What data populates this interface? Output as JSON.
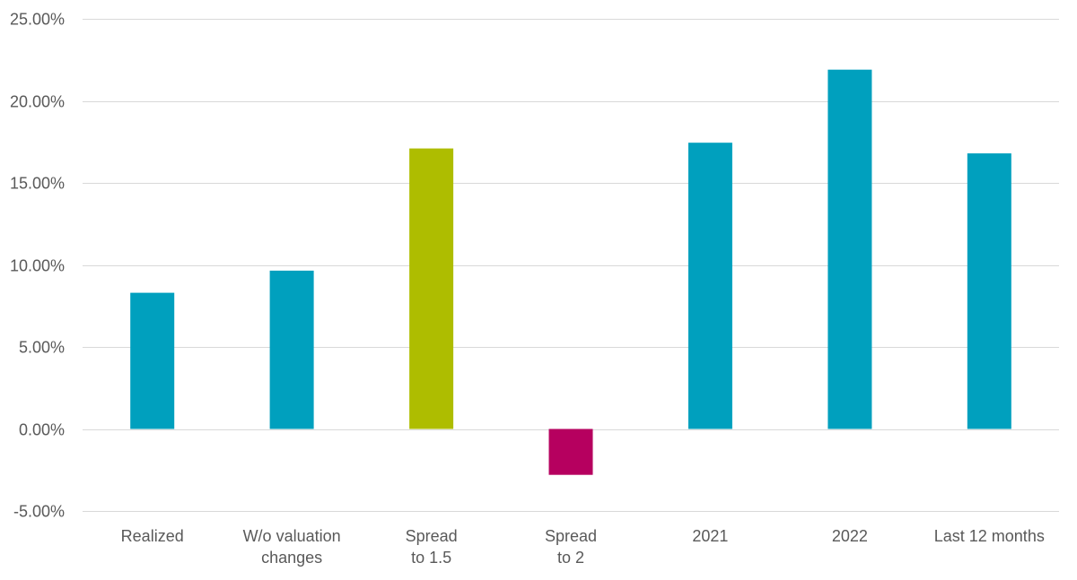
{
  "chart_data": {
    "type": "bar",
    "title": "",
    "xlabel": "",
    "ylabel": "",
    "ylim": [
      -5,
      25
    ],
    "y_ticks": [
      25,
      20,
      15,
      10,
      5,
      0,
      -5
    ],
    "y_tick_labels": [
      "25.00%",
      "20.00%",
      "15.00%",
      "10.00%",
      "5.00%",
      "0.00%",
      "-5.00%"
    ],
    "categories": [
      [
        "Realized"
      ],
      [
        "W/o valuation",
        "changes"
      ],
      [
        "Spread",
        "to 1.5"
      ],
      [
        "Spread",
        "to 2"
      ],
      [
        "2021"
      ],
      [
        "2022"
      ],
      [
        "Last 12 months"
      ]
    ],
    "values": [
      8.3,
      9.65,
      17.1,
      -2.8,
      17.45,
      21.9,
      16.8
    ],
    "bar_colors": [
      "#00a0be",
      "#00a0be",
      "#aebd00",
      "#b6005f",
      "#00a0be",
      "#00a0be",
      "#00a0be"
    ],
    "gridlines": true,
    "legend": "none"
  }
}
